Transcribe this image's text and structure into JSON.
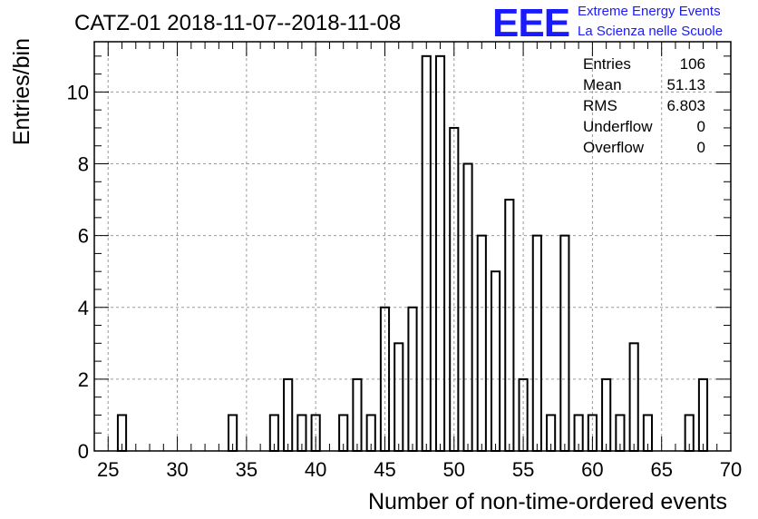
{
  "title": "CATZ-01 2018-11-07--2018-11-08",
  "logo": {
    "mark": "EEE",
    "line1": "Extreme Energy Events",
    "line2": "La Scienza nelle Scuole"
  },
  "stats": [
    {
      "label": "Entries",
      "value": "106"
    },
    {
      "label": "Mean",
      "value": "51.13"
    },
    {
      "label": "RMS",
      "value": "6.803"
    },
    {
      "label": "Underflow",
      "value": "0"
    },
    {
      "label": "Overflow",
      "value": "0"
    }
  ],
  "chart_data": {
    "type": "bar",
    "title": "CATZ-01 2018-11-07--2018-11-08",
    "xlabel": "Number of non-time-ordered events",
    "ylabel": "Entries/bin",
    "xlim": [
      24,
      70
    ],
    "ylim": [
      0,
      11.4
    ],
    "xticks": [
      25,
      30,
      35,
      40,
      45,
      50,
      55,
      60,
      65,
      70
    ],
    "yticks": [
      0,
      2,
      4,
      6,
      8,
      10
    ],
    "grid": true,
    "bin_width": 1,
    "bars": [
      {
        "x": 26,
        "value": 1
      },
      {
        "x": 34,
        "value": 1
      },
      {
        "x": 37,
        "value": 1
      },
      {
        "x": 38,
        "value": 2
      },
      {
        "x": 39,
        "value": 1
      },
      {
        "x": 40,
        "value": 1
      },
      {
        "x": 42,
        "value": 1
      },
      {
        "x": 43,
        "value": 2
      },
      {
        "x": 44,
        "value": 1
      },
      {
        "x": 45,
        "value": 4
      },
      {
        "x": 46,
        "value": 3
      },
      {
        "x": 47,
        "value": 4
      },
      {
        "x": 48,
        "value": 11
      },
      {
        "x": 49,
        "value": 11
      },
      {
        "x": 50,
        "value": 9
      },
      {
        "x": 51,
        "value": 8
      },
      {
        "x": 52,
        "value": 6
      },
      {
        "x": 53,
        "value": 5
      },
      {
        "x": 54,
        "value": 7
      },
      {
        "x": 55,
        "value": 2
      },
      {
        "x": 56,
        "value": 6
      },
      {
        "x": 57,
        "value": 1
      },
      {
        "x": 58,
        "value": 6
      },
      {
        "x": 59,
        "value": 1
      },
      {
        "x": 60,
        "value": 1
      },
      {
        "x": 61,
        "value": 2
      },
      {
        "x": 62,
        "value": 1
      },
      {
        "x": 63,
        "value": 3
      },
      {
        "x": 64,
        "value": 1
      },
      {
        "x": 67,
        "value": 1
      },
      {
        "x": 68,
        "value": 2
      }
    ]
  }
}
